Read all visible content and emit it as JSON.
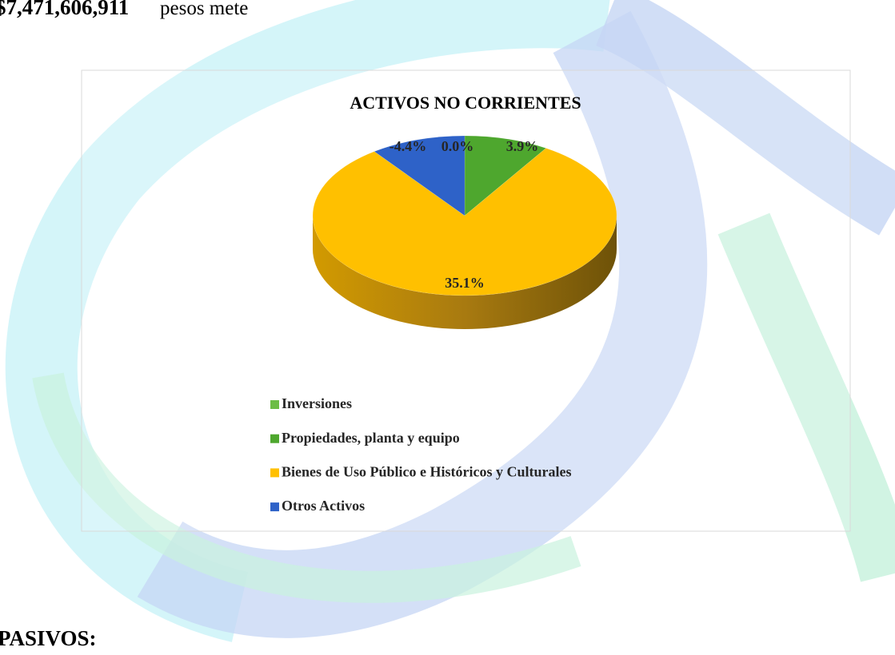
{
  "top_text": {
    "amount": "$7,471,606,911",
    "rest": "pesos mete"
  },
  "chart_data": {
    "type": "pie",
    "title": "ACTIVOS NO CORRIENTES",
    "categories": [
      "Inversiones",
      "Propiedades, planta y equipo",
      "Bienes de Uso Público e Históricos y Culturales",
      "Otros Activos"
    ],
    "values": [
      0.0,
      3.9,
      35.1,
      -4.4
    ],
    "value_labels": [
      "0.0%",
      "3.9%",
      "35.1%",
      "-4.4%"
    ],
    "colors": [
      "#6cbd45",
      "#4ea72e",
      "#ffc000",
      "#2e62c8"
    ]
  },
  "section_heading": "PASIVOS:"
}
